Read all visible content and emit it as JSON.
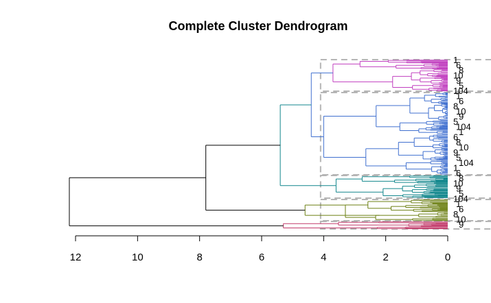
{
  "chart_data": {
    "type": "dendrogram",
    "orientation": "horizontal",
    "title": "Complete Cluster Dendrogram",
    "xlabel": "",
    "ylabel": "",
    "xlim": [
      12,
      0
    ],
    "x_ticks": [
      12,
      10,
      8,
      6,
      4,
      2,
      0
    ],
    "tick_labels": [
      "12",
      "10",
      "8",
      "6",
      "4",
      "2",
      "0"
    ],
    "cut_height": 4.1,
    "clusters": [
      {
        "color": "#c13fbf",
        "merge_height": 4.4,
        "leaves": 22
      },
      {
        "color": "#3f6fcf",
        "merge_height": 4.4,
        "leaves": 55
      },
      {
        "color": "#10868c",
        "merge_height": 5.4,
        "leaves": 20
      },
      {
        "color": "#6b7f12",
        "merge_height": 4.6,
        "leaves": 24
      },
      {
        "color": "#c23a6a",
        "merge_height": 5.3,
        "leaves": 10
      }
    ],
    "top_merges": [
      {
        "height": 12.2,
        "joins": [
          "cluster 1-4",
          "cluster 5"
        ]
      },
      {
        "height": 7.8,
        "joins": [
          "clusters 1-3",
          "cluster 4"
        ]
      },
      {
        "height": 5.4,
        "joins": [
          "clusters 1-2",
          "cluster 3"
        ]
      },
      {
        "height": 4.4,
        "joins": [
          "cluster 1",
          "cluster 2"
        ]
      }
    ],
    "visible_leaf_labels": [
      "1",
      "6",
      "8",
      "10",
      "9",
      "5",
      "104"
    ],
    "colors": {
      "frame": "#000000",
      "cut_boxes": "#b5b5b5"
    }
  }
}
